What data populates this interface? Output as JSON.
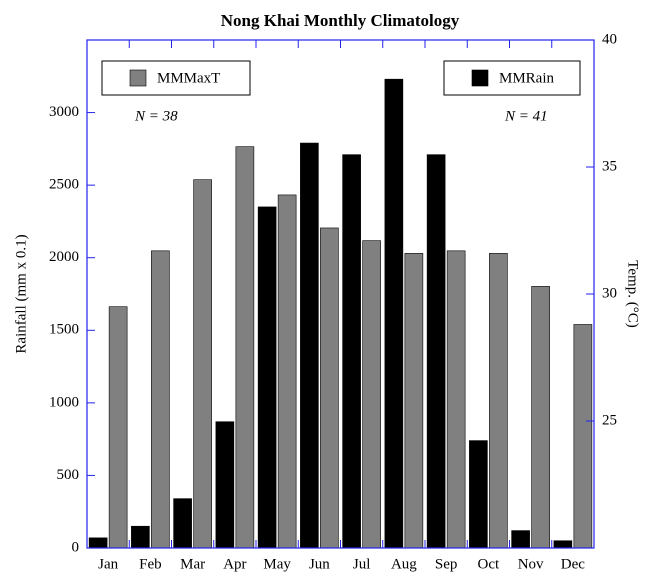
{
  "chart_data": {
    "type": "bar",
    "title": "Nong Khai Monthly Climatology",
    "y_label": "Rainfall (mm x 0.1)",
    "y2_label": "Temp. (°C)",
    "categories": [
      "Jan",
      "Feb",
      "Mar",
      "Apr",
      "May",
      "Jun",
      "Jul",
      "Aug",
      "Sep",
      "Oct",
      "Nov",
      "Dec"
    ],
    "series": [
      {
        "name": "MMRain",
        "color": "#000000",
        "values": [
          70,
          150,
          340,
          870,
          2350,
          2790,
          2710,
          3230,
          2710,
          740,
          120,
          50
        ]
      },
      {
        "name": "MMMaxT",
        "color": "#808080",
        "axis": "y2",
        "values": [
          29.5,
          31.7,
          34.5,
          35.8,
          33.9,
          32.6,
          32.1,
          31.6,
          31.7,
          31.6,
          30.3,
          28.8
        ]
      }
    ],
    "annotations": [
      "N = 38",
      "N = 41"
    ],
    "ylim": [
      0,
      3500
    ],
    "yticks": [
      0,
      500,
      1000,
      1500,
      2000,
      2500,
      3000
    ],
    "y2lim": [
      20,
      40
    ],
    "y2ticks": [
      25,
      30,
      35,
      40
    ],
    "frame_color": "#2222ee"
  }
}
